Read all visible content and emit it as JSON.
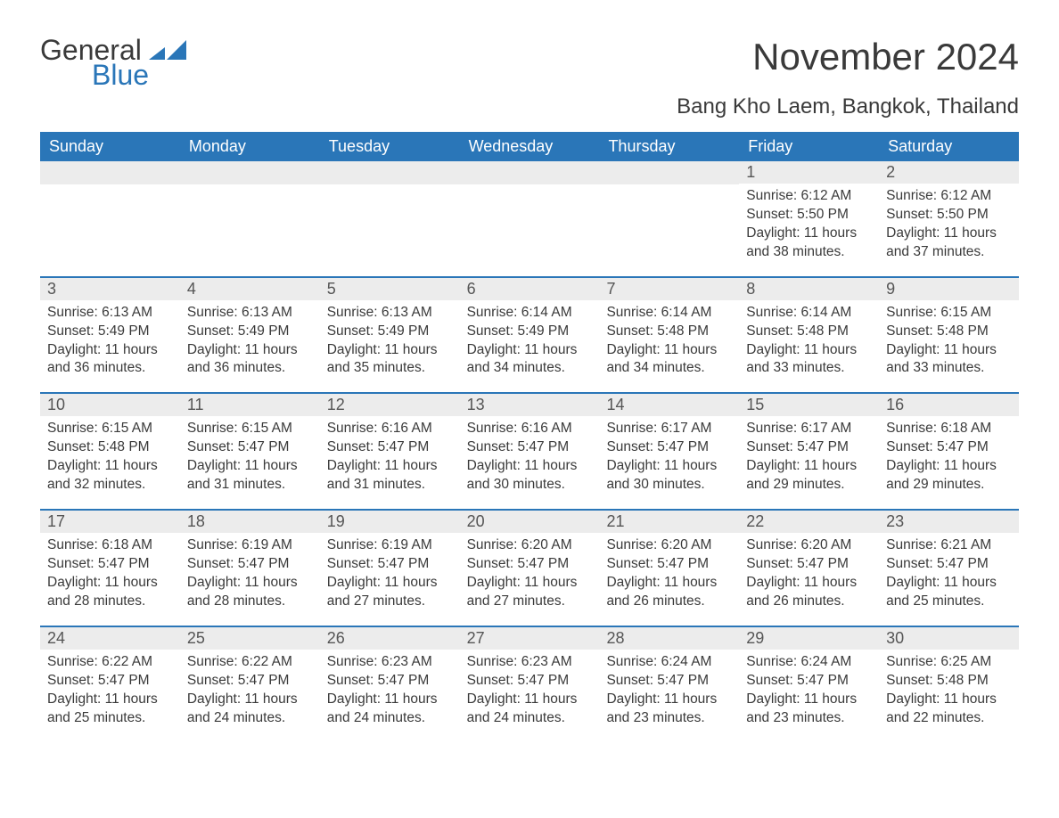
{
  "brand": {
    "word1": "General",
    "word2": "Blue"
  },
  "title": "November 2024",
  "location": "Bang Kho Laem, Bangkok, Thailand",
  "colors": {
    "accent": "#2a76b8",
    "headerRowBg": "#ececec",
    "text": "#3a3a3a",
    "background": "#ffffff"
  },
  "typography": {
    "title_fontsize": 42,
    "location_fontsize": 24,
    "dow_fontsize": 18,
    "body_fontsize": 15.5
  },
  "daysOfWeek": [
    "Sunday",
    "Monday",
    "Tuesday",
    "Wednesday",
    "Thursday",
    "Friday",
    "Saturday"
  ],
  "layout": {
    "type": "calendar-table",
    "columns": 7,
    "rows": 5,
    "leading_blanks": 5
  },
  "weeks": [
    [
      null,
      null,
      null,
      null,
      null,
      {
        "n": "1",
        "sunrise": "Sunrise: 6:12 AM",
        "sunset": "Sunset: 5:50 PM",
        "daylight": "Daylight: 11 hours and 38 minutes."
      },
      {
        "n": "2",
        "sunrise": "Sunrise: 6:12 AM",
        "sunset": "Sunset: 5:50 PM",
        "daylight": "Daylight: 11 hours and 37 minutes."
      }
    ],
    [
      {
        "n": "3",
        "sunrise": "Sunrise: 6:13 AM",
        "sunset": "Sunset: 5:49 PM",
        "daylight": "Daylight: 11 hours and 36 minutes."
      },
      {
        "n": "4",
        "sunrise": "Sunrise: 6:13 AM",
        "sunset": "Sunset: 5:49 PM",
        "daylight": "Daylight: 11 hours and 36 minutes."
      },
      {
        "n": "5",
        "sunrise": "Sunrise: 6:13 AM",
        "sunset": "Sunset: 5:49 PM",
        "daylight": "Daylight: 11 hours and 35 minutes."
      },
      {
        "n": "6",
        "sunrise": "Sunrise: 6:14 AM",
        "sunset": "Sunset: 5:49 PM",
        "daylight": "Daylight: 11 hours and 34 minutes."
      },
      {
        "n": "7",
        "sunrise": "Sunrise: 6:14 AM",
        "sunset": "Sunset: 5:48 PM",
        "daylight": "Daylight: 11 hours and 34 minutes."
      },
      {
        "n": "8",
        "sunrise": "Sunrise: 6:14 AM",
        "sunset": "Sunset: 5:48 PM",
        "daylight": "Daylight: 11 hours and 33 minutes."
      },
      {
        "n": "9",
        "sunrise": "Sunrise: 6:15 AM",
        "sunset": "Sunset: 5:48 PM",
        "daylight": "Daylight: 11 hours and 33 minutes."
      }
    ],
    [
      {
        "n": "10",
        "sunrise": "Sunrise: 6:15 AM",
        "sunset": "Sunset: 5:48 PM",
        "daylight": "Daylight: 11 hours and 32 minutes."
      },
      {
        "n": "11",
        "sunrise": "Sunrise: 6:15 AM",
        "sunset": "Sunset: 5:47 PM",
        "daylight": "Daylight: 11 hours and 31 minutes."
      },
      {
        "n": "12",
        "sunrise": "Sunrise: 6:16 AM",
        "sunset": "Sunset: 5:47 PM",
        "daylight": "Daylight: 11 hours and 31 minutes."
      },
      {
        "n": "13",
        "sunrise": "Sunrise: 6:16 AM",
        "sunset": "Sunset: 5:47 PM",
        "daylight": "Daylight: 11 hours and 30 minutes."
      },
      {
        "n": "14",
        "sunrise": "Sunrise: 6:17 AM",
        "sunset": "Sunset: 5:47 PM",
        "daylight": "Daylight: 11 hours and 30 minutes."
      },
      {
        "n": "15",
        "sunrise": "Sunrise: 6:17 AM",
        "sunset": "Sunset: 5:47 PM",
        "daylight": "Daylight: 11 hours and 29 minutes."
      },
      {
        "n": "16",
        "sunrise": "Sunrise: 6:18 AM",
        "sunset": "Sunset: 5:47 PM",
        "daylight": "Daylight: 11 hours and 29 minutes."
      }
    ],
    [
      {
        "n": "17",
        "sunrise": "Sunrise: 6:18 AM",
        "sunset": "Sunset: 5:47 PM",
        "daylight": "Daylight: 11 hours and 28 minutes."
      },
      {
        "n": "18",
        "sunrise": "Sunrise: 6:19 AM",
        "sunset": "Sunset: 5:47 PM",
        "daylight": "Daylight: 11 hours and 28 minutes."
      },
      {
        "n": "19",
        "sunrise": "Sunrise: 6:19 AM",
        "sunset": "Sunset: 5:47 PM",
        "daylight": "Daylight: 11 hours and 27 minutes."
      },
      {
        "n": "20",
        "sunrise": "Sunrise: 6:20 AM",
        "sunset": "Sunset: 5:47 PM",
        "daylight": "Daylight: 11 hours and 27 minutes."
      },
      {
        "n": "21",
        "sunrise": "Sunrise: 6:20 AM",
        "sunset": "Sunset: 5:47 PM",
        "daylight": "Daylight: 11 hours and 26 minutes."
      },
      {
        "n": "22",
        "sunrise": "Sunrise: 6:20 AM",
        "sunset": "Sunset: 5:47 PM",
        "daylight": "Daylight: 11 hours and 26 minutes."
      },
      {
        "n": "23",
        "sunrise": "Sunrise: 6:21 AM",
        "sunset": "Sunset: 5:47 PM",
        "daylight": "Daylight: 11 hours and 25 minutes."
      }
    ],
    [
      {
        "n": "24",
        "sunrise": "Sunrise: 6:22 AM",
        "sunset": "Sunset: 5:47 PM",
        "daylight": "Daylight: 11 hours and 25 minutes."
      },
      {
        "n": "25",
        "sunrise": "Sunrise: 6:22 AM",
        "sunset": "Sunset: 5:47 PM",
        "daylight": "Daylight: 11 hours and 24 minutes."
      },
      {
        "n": "26",
        "sunrise": "Sunrise: 6:23 AM",
        "sunset": "Sunset: 5:47 PM",
        "daylight": "Daylight: 11 hours and 24 minutes."
      },
      {
        "n": "27",
        "sunrise": "Sunrise: 6:23 AM",
        "sunset": "Sunset: 5:47 PM",
        "daylight": "Daylight: 11 hours and 24 minutes."
      },
      {
        "n": "28",
        "sunrise": "Sunrise: 6:24 AM",
        "sunset": "Sunset: 5:47 PM",
        "daylight": "Daylight: 11 hours and 23 minutes."
      },
      {
        "n": "29",
        "sunrise": "Sunrise: 6:24 AM",
        "sunset": "Sunset: 5:47 PM",
        "daylight": "Daylight: 11 hours and 23 minutes."
      },
      {
        "n": "30",
        "sunrise": "Sunrise: 6:25 AM",
        "sunset": "Sunset: 5:48 PM",
        "daylight": "Daylight: 11 hours and 22 minutes."
      }
    ]
  ]
}
